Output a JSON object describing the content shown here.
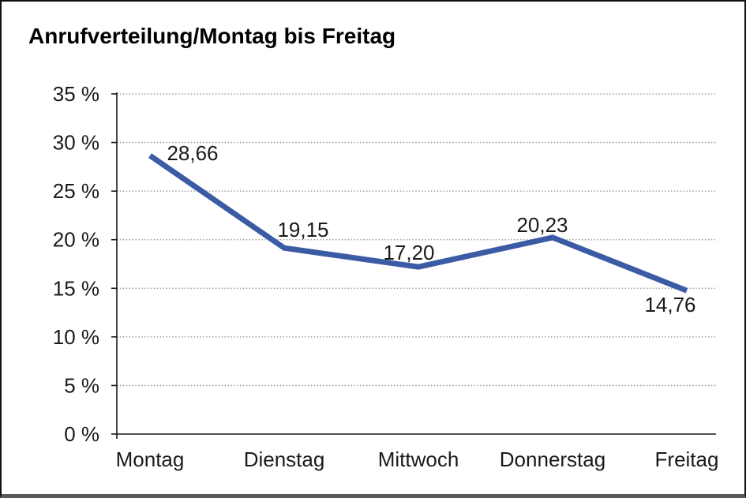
{
  "chart_data": {
    "type": "line",
    "title": "Anrufverteilung/Montag bis Freitag",
    "categories": [
      "Montag",
      "Dienstag",
      "Mittwoch",
      "Donnerstag",
      "Freitag"
    ],
    "series": [
      {
        "name": "Anrufverteilung",
        "values": [
          28.66,
          19.15,
          17.2,
          20.23,
          14.76
        ]
      }
    ],
    "value_labels": [
      "28,66",
      "19,15",
      "17,20",
      "20,23",
      "14,76"
    ],
    "y_ticks": [
      0,
      5,
      10,
      15,
      20,
      25,
      30,
      35
    ],
    "y_tick_labels": [
      "0 %",
      "5 %",
      "10 %",
      "15 %",
      "20 %",
      "25 %",
      "30 %",
      "35 %"
    ],
    "ylim": [
      0,
      35
    ],
    "xlabel": "",
    "ylabel": "",
    "grid": "horizontal-dotted",
    "legend": "none",
    "colors": {
      "line": "#3B5BA5",
      "axis": "#1a1a1a",
      "grid": "#8f8f8f",
      "text": "#1a1a1a"
    }
  }
}
